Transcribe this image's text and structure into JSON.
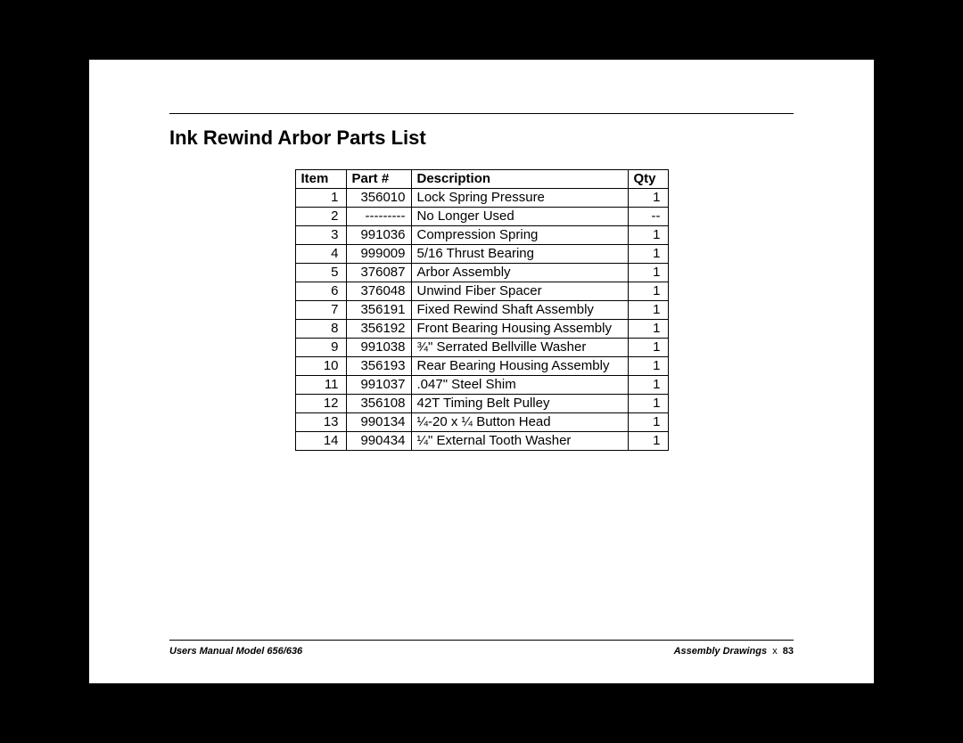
{
  "title": "Ink Rewind Arbor Parts List",
  "columns": [
    "Item",
    "Part #",
    "Description",
    "Qty"
  ],
  "rows": [
    [
      "1",
      "356010",
      "Lock Spring Pressure",
      "1"
    ],
    [
      "2",
      "---------",
      "No Longer Used",
      "--"
    ],
    [
      "3",
      "991036",
      "Compression Spring",
      "1"
    ],
    [
      "4",
      "999009",
      "5/16 Thrust Bearing",
      "1"
    ],
    [
      "5",
      "376087",
      "Arbor Assembly",
      "1"
    ],
    [
      "6",
      "376048",
      "Unwind Fiber Spacer",
      "1"
    ],
    [
      "7",
      "356191",
      "Fixed Rewind Shaft Assembly",
      "1"
    ],
    [
      "8",
      "356192",
      "Front Bearing Housing Assembly",
      "1"
    ],
    [
      "9",
      "991038",
      "¾\" Serrated Bellville Washer",
      "1"
    ],
    [
      "10",
      "356193",
      "Rear Bearing Housing Assembly",
      "1"
    ],
    [
      "11",
      "991037",
      ".047\" Steel Shim",
      "1"
    ],
    [
      "12",
      "356108",
      "42T Timing Belt Pulley",
      "1"
    ],
    [
      "13",
      "990134",
      "¼-20 x ¼ Button Head",
      "1"
    ],
    [
      "14",
      "990434",
      "¼\" External Tooth Washer",
      "1"
    ]
  ],
  "footer": {
    "left": "Users Manual Model 656/636",
    "right_section": "Assembly Drawings",
    "right_sep": "x",
    "right_page": "83"
  }
}
